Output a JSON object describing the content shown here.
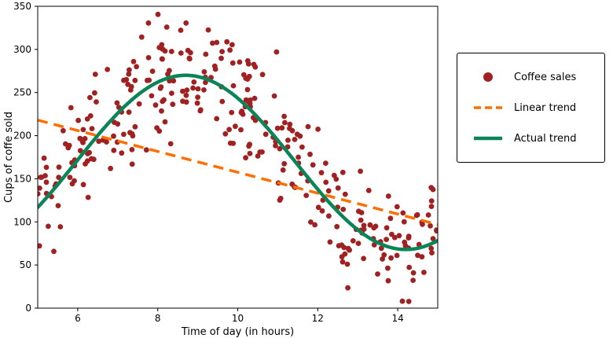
{
  "chart_data": {
    "type": "scatter",
    "title": "",
    "xlabel": "Time of day (in hours)",
    "ylabel": "Cups of coffe sold",
    "xlim": [
      5,
      15
    ],
    "ylim": [
      0,
      350
    ],
    "x_ticks": [
      6,
      8,
      10,
      12,
      14
    ],
    "y_ticks": [
      0,
      50,
      100,
      150,
      200,
      250,
      300,
      350
    ],
    "grid": false,
    "legend_position": "right-outside",
    "series": [
      {
        "name": "Coffee sales",
        "kind": "scatter",
        "color": "#a02122",
        "marker": "circle",
        "marker_radius": 3.4,
        "n_points": 330,
        "seed": 20,
        "noise_sd": 34,
        "x_range": [
          5,
          15
        ],
        "model": {
          "type": "sine",
          "midline": 169,
          "amplitude": 101,
          "period": 11,
          "x_zero": 5.95
        }
      },
      {
        "name": "Linear trend",
        "kind": "line",
        "style": "dashed",
        "color": "#ff6e00",
        "width": 3.5,
        "points": [
          [
            5,
            218
          ],
          [
            15,
            97
          ]
        ]
      },
      {
        "name": "Actual trend",
        "kind": "line",
        "style": "solid",
        "color": "#0b8457",
        "width": 4.5,
        "model": {
          "type": "sine",
          "midline": 169,
          "amplitude": 101,
          "period": 11,
          "x_zero": 5.95
        }
      }
    ]
  }
}
